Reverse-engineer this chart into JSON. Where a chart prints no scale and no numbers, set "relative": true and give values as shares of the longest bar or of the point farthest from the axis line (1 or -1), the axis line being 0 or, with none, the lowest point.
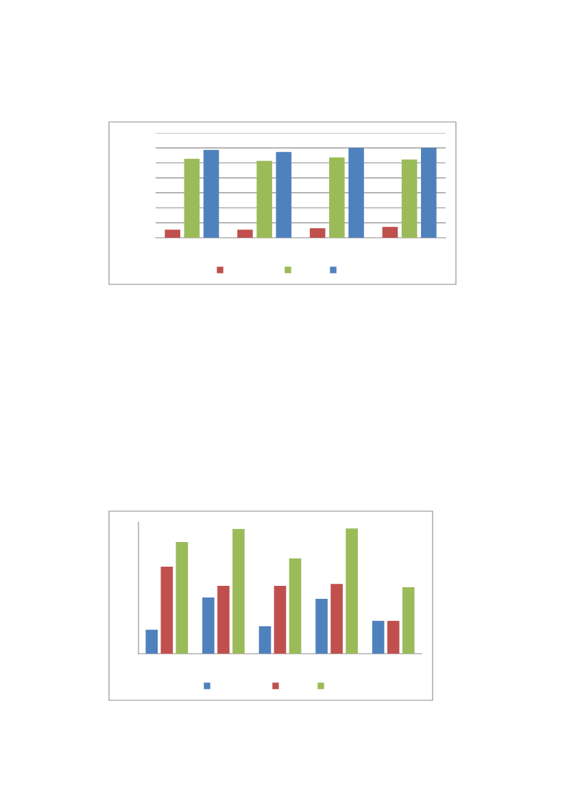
{
  "chart_data": [
    {
      "type": "bar",
      "relative": true,
      "grid": "y",
      "categories": [
        null,
        null,
        null,
        null
      ],
      "series": [
        {
          "color": "#c0504d",
          "values": [
            0.09,
            0.09,
            0.106,
            0.121
          ]
        },
        {
          "color": "#9bbb59",
          "values": [
            0.879,
            0.856,
            0.894,
            0.871
          ]
        },
        {
          "color": "#4f81bd",
          "values": [
            0.977,
            0.955,
            1,
            1
          ]
        }
      ]
    },
    {
      "type": "bar",
      "relative": true,
      "categories": [
        null,
        null,
        null,
        null,
        null
      ],
      "series": [
        {
          "color": "#4f81bd",
          "values": [
            0.191,
            0.448,
            0.219,
            0.437,
            0.262
          ]
        },
        {
          "color": "#c0504d",
          "values": [
            0.694,
            0.541,
            0.541,
            0.557,
            0.262
          ]
        },
        {
          "color": "#9bbb59",
          "values": [
            0.891,
            0.995,
            0.76,
            1,
            0.53
          ]
        }
      ]
    }
  ]
}
